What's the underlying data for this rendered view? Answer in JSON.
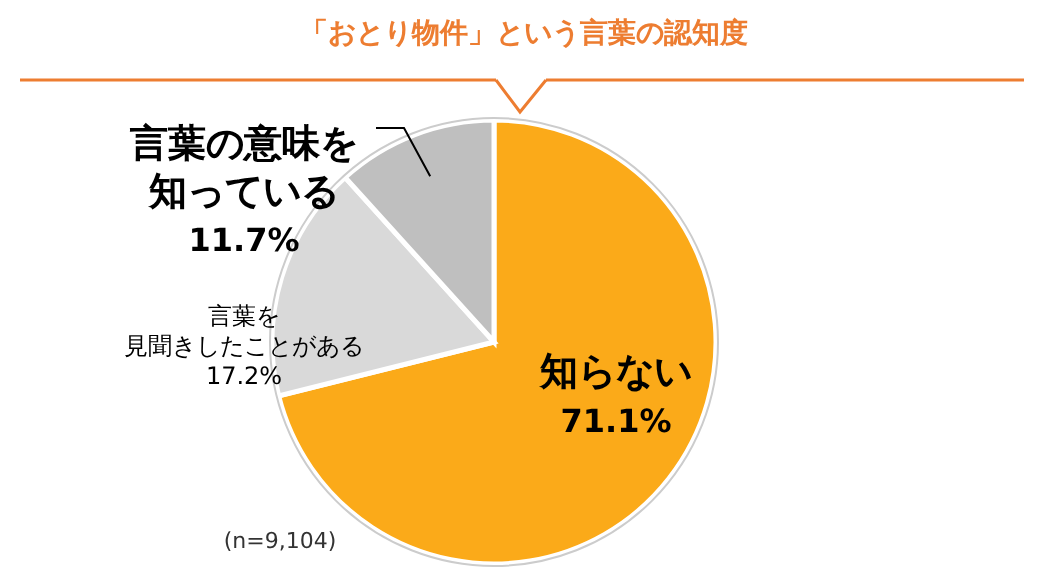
{
  "chart_data": {
    "type": "pie",
    "title": "「おとり物件」という言葉の認知度",
    "categories": [
      "知らない",
      "言葉を見聞きしたことがある",
      "言葉の意味を知っている"
    ],
    "values": [
      71.1,
      17.2,
      11.7
    ],
    "value_labels": [
      "71.1%",
      "17.2%",
      "11.7%"
    ],
    "colors": [
      "#fbaa19",
      "#d9d9d9",
      "#bfbfbf"
    ],
    "annotations": [
      "(n=9,104)"
    ]
  }
}
